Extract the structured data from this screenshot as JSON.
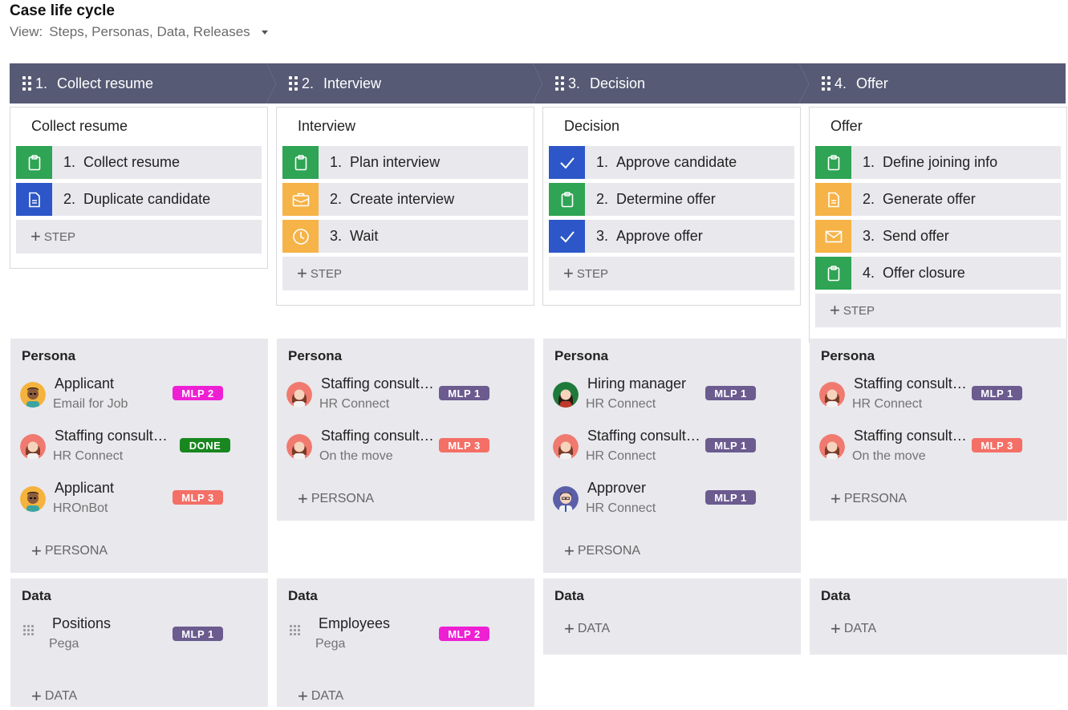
{
  "page": {
    "title": "Case life cycle",
    "view_label": "View:",
    "view_value": "Steps, Personas, Data, Releases"
  },
  "stages": [
    {
      "num": "1.",
      "name": "Collect resume",
      "process": "Collect resume",
      "steps": [
        {
          "num": "1.",
          "label": "Collect resume",
          "icon": "clipboard-icon",
          "color": "#2ea454"
        },
        {
          "num": "2.",
          "label": "Duplicate candidate",
          "icon": "document-icon",
          "color": "#2d57c8"
        }
      ],
      "add_step": "STEP",
      "personas": [
        {
          "name": "Applicant",
          "channel": "Email for Job",
          "badge": "MLP 2",
          "badge_color": "#ee20d4",
          "avatar": "applicant-avatar"
        },
        {
          "name": "Staffing consultant",
          "channel": "HR Connect",
          "badge": "DONE",
          "badge_color": "#18871f",
          "avatar": "staffing-consultant-avatar"
        },
        {
          "name": "Applicant",
          "channel": "HROnBot",
          "badge": "MLP 3",
          "badge_color": "#f46f66",
          "avatar": "applicant-avatar"
        }
      ],
      "add_persona": "PERSONA",
      "data_items": [
        {
          "name": "Positions",
          "source": "Pega",
          "badge": "MLP 1",
          "badge_color": "#6b5b8f"
        }
      ],
      "add_data": "DATA"
    },
    {
      "num": "2.",
      "name": "Interview",
      "process": "Interview",
      "steps": [
        {
          "num": "1.",
          "label": "Plan interview",
          "icon": "clipboard-icon",
          "color": "#2ea454"
        },
        {
          "num": "2.",
          "label": "Create interview",
          "icon": "briefcase-icon",
          "color": "#f6b347"
        },
        {
          "num": "3.",
          "label": "Wait",
          "icon": "clock-icon",
          "color": "#f6b347"
        }
      ],
      "add_step": "STEP",
      "personas": [
        {
          "name": "Staffing consultant",
          "channel": "HR Connect",
          "badge": "MLP 1",
          "badge_color": "#6b5b8f",
          "avatar": "staffing-consultant-avatar"
        },
        {
          "name": "Staffing consultant",
          "channel": "On the move",
          "badge": "MLP 3",
          "badge_color": "#f46f66",
          "avatar": "staffing-consultant-avatar"
        }
      ],
      "add_persona": "PERSONA",
      "data_items": [
        {
          "name": "Employees",
          "source": "Pega",
          "badge": "MLP 2",
          "badge_color": "#ee20d4"
        }
      ],
      "add_data": "DATA"
    },
    {
      "num": "3.",
      "name": "Decision",
      "process": "Decision",
      "steps": [
        {
          "num": "1.",
          "label": "Approve candidate",
          "icon": "checkmark-icon",
          "color": "#2d57c8"
        },
        {
          "num": "2.",
          "label": "Determine offer",
          "icon": "clipboard-icon",
          "color": "#2ea454"
        },
        {
          "num": "3.",
          "label": "Approve offer",
          "icon": "checkmark-icon",
          "color": "#2d57c8"
        }
      ],
      "add_step": "STEP",
      "personas": [
        {
          "name": "Hiring manager",
          "channel": "HR Connect",
          "badge": "MLP 1",
          "badge_color": "#6b5b8f",
          "avatar": "hiring-manager-avatar"
        },
        {
          "name": "Staffing consultant",
          "channel": "HR Connect",
          "badge": "MLP 1",
          "badge_color": "#6b5b8f",
          "avatar": "staffing-consultant-avatar"
        },
        {
          "name": "Approver",
          "channel": "HR Connect",
          "badge": "MLP 1",
          "badge_color": "#6b5b8f",
          "avatar": "approver-avatar"
        }
      ],
      "add_persona": "PERSONA",
      "data_items": [],
      "add_data": "DATA"
    },
    {
      "num": "4.",
      "name": "Offer",
      "process": "Offer",
      "steps": [
        {
          "num": "1.",
          "label": "Define joining info",
          "icon": "clipboard-icon",
          "color": "#2ea454"
        },
        {
          "num": "2.",
          "label": "Generate offer",
          "icon": "document-icon",
          "color": "#f6b347"
        },
        {
          "num": "3.",
          "label": "Send offer",
          "icon": "envelope-icon",
          "color": "#f6b347"
        },
        {
          "num": "4.",
          "label": "Offer closure",
          "icon": "clipboard-icon",
          "color": "#2ea454"
        }
      ],
      "add_step": "STEP",
      "personas": [
        {
          "name": "Staffing consultant",
          "channel": "HR Connect",
          "badge": "MLP 1",
          "badge_color": "#6b5b8f",
          "avatar": "staffing-consultant-avatar"
        },
        {
          "name": "Staffing consultant",
          "channel": "On the move",
          "badge": "MLP 3",
          "badge_color": "#f46f66",
          "avatar": "staffing-consultant-avatar"
        }
      ],
      "add_persona": "PERSONA",
      "data_items": [],
      "add_data": "DATA"
    }
  ],
  "labels": {
    "persona_title": "Persona",
    "data_title": "Data"
  }
}
